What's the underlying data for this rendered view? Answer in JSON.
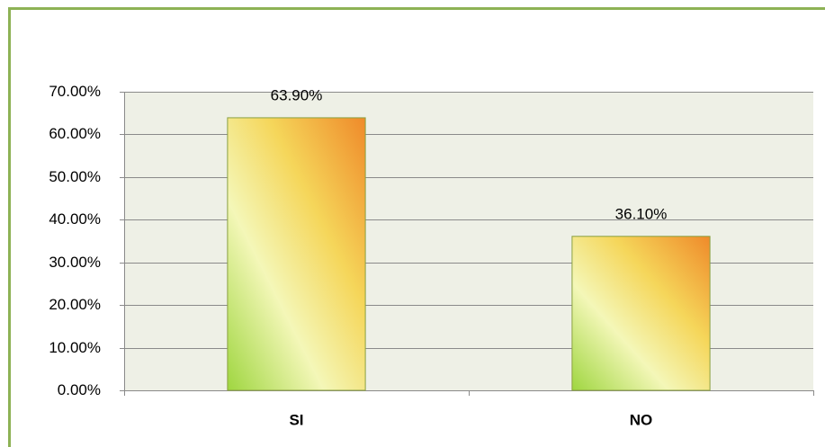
{
  "chart_data": {
    "type": "bar",
    "categories": [
      "SI",
      "NO"
    ],
    "values": [
      63.9,
      36.1
    ],
    "value_labels": [
      "63.90%",
      "36.10%"
    ],
    "ylim": [
      0,
      70
    ],
    "yticks": [
      {
        "value": 0,
        "label": "0.00%"
      },
      {
        "value": 10,
        "label": "10.00%"
      },
      {
        "value": 20,
        "label": "20.00%"
      },
      {
        "value": 30,
        "label": "30.00%"
      },
      {
        "value": 40,
        "label": "40.00%"
      },
      {
        "value": 50,
        "label": "50.00%"
      },
      {
        "value": 60,
        "label": "60.00%"
      },
      {
        "value": 70,
        "label": "70.00%"
      }
    ],
    "grid": true
  }
}
